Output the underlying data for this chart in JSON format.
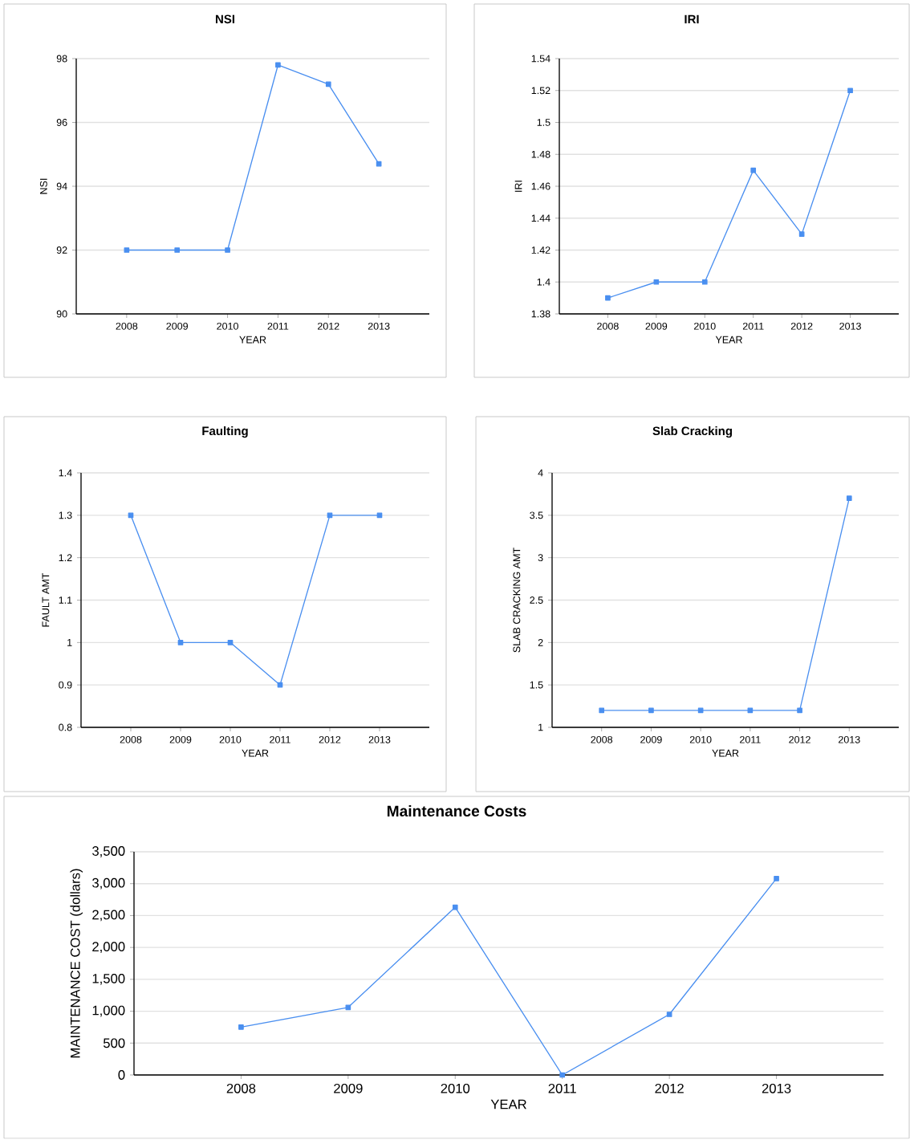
{
  "chart_data": [
    {
      "type": "line",
      "title": "NSI",
      "xlabel": "YEAR",
      "ylabel": "NSI",
      "categories": [
        "2008",
        "2009",
        "2010",
        "2011",
        "2012",
        "2013"
      ],
      "values": [
        92,
        92,
        92,
        97.8,
        97.2,
        94.7
      ],
      "color": "#4a8ff0",
      "ylim": [
        90,
        98
      ],
      "yticks": [
        90,
        92,
        94,
        96,
        98
      ],
      "grid": "y",
      "marker": "square"
    },
    {
      "type": "line",
      "title": "IRI",
      "xlabel": "YEAR",
      "ylabel": "IRI",
      "categories": [
        "2008",
        "2009",
        "2010",
        "2011",
        "2012",
        "2013"
      ],
      "values": [
        1.39,
        1.4,
        1.4,
        1.47,
        1.43,
        1.52
      ],
      "color": "#4a8ff0",
      "ylim": [
        1.38,
        1.54
      ],
      "yticks": [
        1.38,
        1.4,
        1.42,
        1.44,
        1.46,
        1.48,
        1.5,
        1.52,
        1.54
      ],
      "grid": "y",
      "marker": "square"
    },
    {
      "type": "line",
      "title": "Faulting",
      "xlabel": "YEAR",
      "ylabel": "FAULT AMT",
      "categories": [
        "2008",
        "2009",
        "2010",
        "2011",
        "2012",
        "2013"
      ],
      "values": [
        1.3,
        1.0,
        1.0,
        0.9,
        1.3,
        1.3
      ],
      "color": "#4a8ff0",
      "ylim": [
        0.8,
        1.4
      ],
      "yticks": [
        0.8,
        0.9,
        1,
        1.1,
        1.2,
        1.3,
        1.4
      ],
      "grid": "y",
      "marker": "square"
    },
    {
      "type": "line",
      "title": "Slab Cracking",
      "xlabel": "YEAR",
      "ylabel": "SLAB CRACKING AMT",
      "categories": [
        "2008",
        "2009",
        "2010",
        "2011",
        "2012",
        "2013"
      ],
      "values": [
        1.2,
        1.2,
        1.2,
        1.2,
        1.2,
        3.7
      ],
      "color": "#4a8ff0",
      "ylim": [
        1,
        4
      ],
      "yticks": [
        1,
        1.5,
        2,
        2.5,
        3,
        3.5,
        4
      ],
      "grid": "y",
      "marker": "square"
    },
    {
      "type": "line",
      "title": "Maintenance Costs",
      "xlabel": "YEAR",
      "ylabel": "MAINTENANCE COST (dollars)",
      "categories": [
        "2008",
        "2009",
        "2010",
        "2011",
        "2012",
        "2013"
      ],
      "values": [
        750,
        1060,
        2630,
        0,
        950,
        3080
      ],
      "color": "#4a8ff0",
      "ylim": [
        0,
        3500
      ],
      "yticks": [
        0,
        500,
        {
          "value": 1000,
          "label": "1,000"
        },
        {
          "value": 1500,
          "label": "1,500"
        },
        {
          "value": 2000,
          "label": "2,000"
        },
        {
          "value": 2500,
          "label": "2,500"
        },
        {
          "value": 3000,
          "label": "3,000"
        },
        {
          "value": 3500,
          "label": "3,500"
        }
      ],
      "grid": "y",
      "marker": "square"
    }
  ]
}
